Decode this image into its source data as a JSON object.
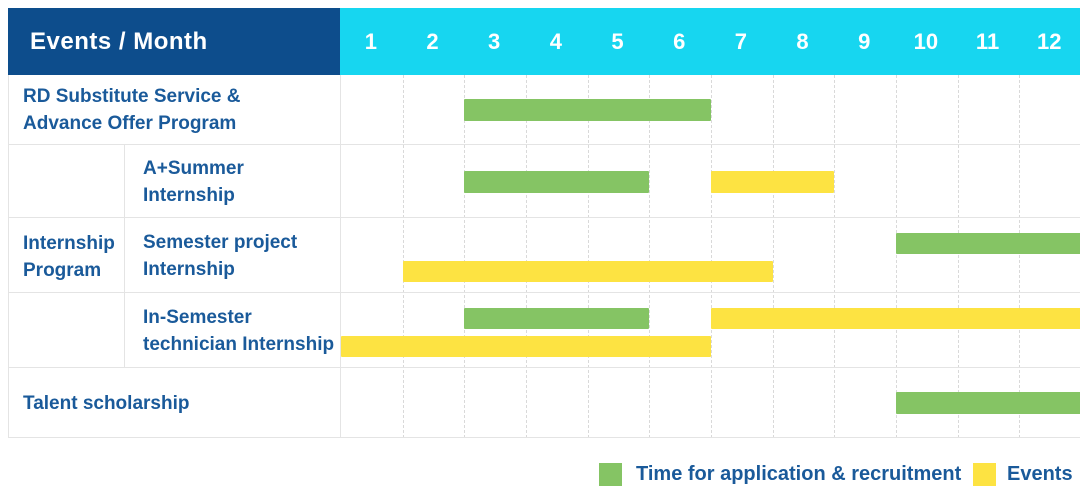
{
  "header": {
    "label": "Events / Month"
  },
  "months": [
    "1",
    "2",
    "3",
    "4",
    "5",
    "6",
    "7",
    "8",
    "9",
    "10",
    "11",
    "12"
  ],
  "colors": {
    "header_bg": "#0d4d8c",
    "month_header_bg": "#17d6f0",
    "recruitment_green": "#85c464",
    "events_yellow": "#fde342",
    "label_text": "#1a5a9a",
    "grid_line": "#e4e4e4"
  },
  "legend": [
    {
      "series": "recruitment",
      "label": "Time for application & recruitment"
    },
    {
      "series": "events",
      "label": "Events"
    }
  ],
  "chart_data": {
    "type": "gantt",
    "title": "Events / Month",
    "x_unit": "month",
    "x_range": [
      1,
      12
    ],
    "series": [
      {
        "name": "recruitment",
        "label": "Time for application & recruitment",
        "color": "#85c464"
      },
      {
        "name": "events",
        "label": "Events",
        "color": "#fde342"
      }
    ],
    "group_label_lines": [
      "Internship",
      "Program"
    ],
    "rows": [
      {
        "label_lines": [
          "RD Substitute Service &",
          "Advance Offer Program"
        ],
        "group": "",
        "lanes": 1,
        "bars": [
          {
            "series": "recruitment",
            "start": 3,
            "end": 6,
            "lane": 0
          }
        ]
      },
      {
        "label_lines": [
          "A+Summer",
          "Internship"
        ],
        "group": "Internship Program",
        "lanes": 1,
        "bars": [
          {
            "series": "recruitment",
            "start": 3,
            "end": 5,
            "lane": 0
          },
          {
            "series": "events",
            "start": 7,
            "end": 8,
            "lane": 0
          }
        ]
      },
      {
        "label_lines": [
          "Semester project",
          "Internship"
        ],
        "group": "Internship Program",
        "lanes": 2,
        "bars": [
          {
            "series": "recruitment",
            "start": 10,
            "end": 12,
            "lane": 0
          },
          {
            "series": "events",
            "start": 2,
            "end": 7,
            "lane": 1
          }
        ]
      },
      {
        "label_lines": [
          "In-Semester",
          "technician Internship"
        ],
        "group": "Internship Program",
        "lanes": 2,
        "bars": [
          {
            "series": "recruitment",
            "start": 3,
            "end": 5,
            "lane": 0
          },
          {
            "series": "events",
            "start": 7,
            "end": 12,
            "lane": 0
          },
          {
            "series": "events",
            "start": 1,
            "end": 6,
            "lane": 1
          }
        ]
      },
      {
        "label_lines": [
          "Talent scholarship"
        ],
        "group": "",
        "lanes": 1,
        "bars": [
          {
            "series": "recruitment",
            "start": 10,
            "end": 12,
            "lane": 0
          }
        ]
      }
    ]
  }
}
